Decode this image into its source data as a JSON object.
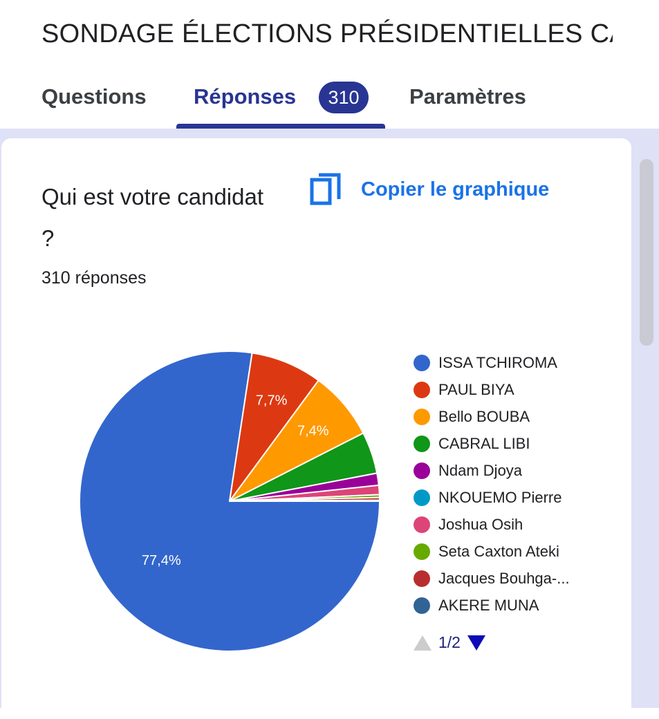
{
  "header": {
    "title": "SONDAGE ÉLECTIONS PRÉSIDENTIELLES CAMEROUN"
  },
  "tabs": [
    {
      "label": "Questions"
    },
    {
      "label": "Réponses",
      "badge": "310"
    },
    {
      "label": "Paramètres"
    }
  ],
  "card": {
    "question": "Qui est votre candidat ?",
    "count": "310 réponses",
    "copy_label": "Copier le graphique"
  },
  "chart_data": {
    "type": "pie",
    "title": "Qui est votre candidat ?",
    "start_angle_deg": 90,
    "slices": [
      {
        "name": "ISSA TCHIROMA",
        "value": 77.4,
        "label": "77,4%",
        "color": "#3366cc"
      },
      {
        "name": "PAUL BIYA",
        "value": 7.7,
        "label": "7,7%",
        "color": "#dc3912"
      },
      {
        "name": "Bello BOUBA",
        "value": 7.4,
        "label": "7,4%",
        "color": "#ff9900"
      },
      {
        "name": "CABRAL LIBI",
        "value": 4.5,
        "label": "",
        "color": "#109618"
      },
      {
        "name": "Ndam Djoya",
        "value": 1.3,
        "label": "",
        "color": "#990099"
      },
      {
        "name": "NKOUEMO Pierre",
        "value": 0,
        "label": "",
        "color": "#0099c6"
      },
      {
        "name": "Joshua Osih",
        "value": 1.0,
        "label": "",
        "color": "#dd4477"
      },
      {
        "name": "Seta Caxton Ateki",
        "value": 0.3,
        "label": "",
        "color": "#66aa00"
      },
      {
        "name": "Jacques Bouhga-...",
        "value": 0.3,
        "label": "",
        "color": "#b82e2e"
      },
      {
        "name": "AKERE MUNA",
        "value": 0.1,
        "label": "",
        "color": "#316395"
      }
    ],
    "legend_position": "right",
    "legend_page": "1/2"
  }
}
